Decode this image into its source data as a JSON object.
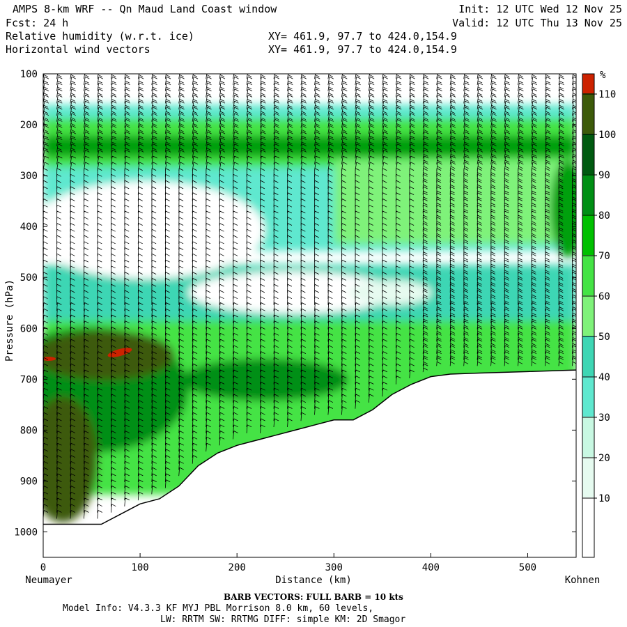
{
  "header": {
    "title": "AMPS 8-km WRF -- Qn Maud Land Coast window",
    "fcst": "Fcst:    24 h",
    "init": "Init: 12 UTC Wed 12 Nov 25",
    "valid": "Valid: 12 UTC Thu 13 Nov 25",
    "field1": "Relative humidity (w.r.t. ice)",
    "field2": "Horizontal wind vectors",
    "xy1": "XY= 461.9, 97.7 to 424.0,154.9",
    "xy2": "XY= 461.9, 97.7 to 424.0,154.9"
  },
  "axes": {
    "ylabel": "Pressure (hPa)",
    "xlabel": "Distance (km)",
    "left_endpoint": "Neumayer",
    "right_endpoint": "Kohnen"
  },
  "colorbar": {
    "unit": "%",
    "levels": [
      10,
      20,
      30,
      40,
      50,
      60,
      70,
      80,
      90,
      100,
      110
    ],
    "labels": [
      "10",
      "20",
      "30",
      "40",
      "50",
      "60",
      "70",
      "80",
      "90",
      "100",
      "110"
    ],
    "colors": [
      "#ffffff",
      "#ffffff",
      "#e6fbf0",
      "#c8f8e2",
      "#5fe8cf",
      "#3ed6b4",
      "#7ff27a",
      "#45e345",
      "#00c000",
      "#008f14",
      "#005a10",
      "#3c5a0a",
      "#cc2200"
    ]
  },
  "chart_data": {
    "type": "heatmap",
    "x_range": [
      0,
      550
    ],
    "y_range": [
      100,
      1050
    ],
    "y_scale": "linear, inverted",
    "x_ticks": [
      0,
      100,
      200,
      300,
      400,
      500
    ],
    "x_tick_labels": [
      "0",
      "100",
      "200",
      "300",
      "400",
      "500"
    ],
    "y_ticks": [
      100,
      200,
      300,
      400,
      500,
      600,
      700,
      800,
      900,
      1000
    ],
    "y_tick_labels": [
      "100",
      "200",
      "300",
      "400",
      "500",
      "600",
      "700",
      "800",
      "900",
      "1000"
    ],
    "terrain_surface_pressure": {
      "x": [
        0,
        20,
        40,
        60,
        80,
        100,
        120,
        140,
        160,
        180,
        200,
        220,
        240,
        260,
        280,
        300,
        320,
        340,
        360,
        380,
        400,
        420,
        450,
        500,
        550
      ],
      "p": [
        985,
        985,
        985,
        985,
        965,
        945,
        935,
        910,
        870,
        845,
        830,
        820,
        810,
        800,
        790,
        780,
        780,
        760,
        730,
        710,
        695,
        690,
        688,
        685,
        682
      ]
    },
    "humidity_features": [
      {
        "region": "tropopause moist band",
        "x": [
          0,
          550
        ],
        "p": [
          200,
          260
        ],
        "rh_pct": 95
      },
      {
        "region": "dry layer",
        "x": [
          0,
          400
        ],
        "p": [
          300,
          560
        ],
        "rh_pct": 10
      },
      {
        "region": "low-level moist core",
        "x": [
          0,
          130
        ],
        "p": [
          620,
          980
        ],
        "rh_pct": 105
      },
      {
        "region": "supersaturated spot",
        "x": [
          80,
          100
        ],
        "p": [
          645,
          660
        ],
        "rh_pct": 115
      }
    ],
    "wind_barbs": {
      "full_barb_kts": 10
    }
  },
  "footer": {
    "barb_note": "BARB VECTORS:  FULL BARB = 10 kts",
    "model_info": "Model Info: V4.3.3   KF      MYJ PBL  Morrison            8.0 km,  60 levels,",
    "physics": "LW: RRTM SW: RRTMG   DIFF: simple KM: 2D Smagor"
  }
}
